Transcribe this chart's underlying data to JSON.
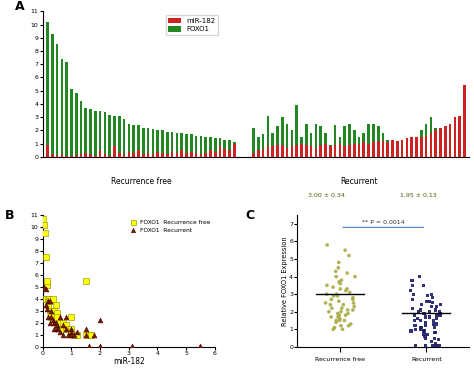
{
  "panel_A_label": "A",
  "panel_B_label": "B",
  "panel_C_label": "C",
  "recurrence_free_count": 40,
  "recurrent_count": 45,
  "foxo1_recurrence_free": [
    10.2,
    9.3,
    8.5,
    7.4,
    7.2,
    5.1,
    4.8,
    4.2,
    3.7,
    3.6,
    3.5,
    3.5,
    3.4,
    3.2,
    3.1,
    3.1,
    2.9,
    2.5,
    2.4,
    2.4,
    2.2,
    2.2,
    2.1,
    2.0,
    2.0,
    1.9,
    1.9,
    1.8,
    1.8,
    1.7,
    1.7,
    1.6,
    1.6,
    1.5,
    1.5,
    1.4,
    1.4,
    1.3,
    1.3,
    1.1
  ],
  "mir182_recurrence_free": [
    0.9,
    0.2,
    0.15,
    0.2,
    0.1,
    0.1,
    0.15,
    0.2,
    0.3,
    0.2,
    0.1,
    0.5,
    0.2,
    0.1,
    0.8,
    0.3,
    0.2,
    0.4,
    0.3,
    0.5,
    0.2,
    0.3,
    0.2,
    0.4,
    0.3,
    0.2,
    0.4,
    0.3,
    0.5,
    0.3,
    0.4,
    0.3,
    0.2,
    0.3,
    0.5,
    0.4,
    0.8,
    0.6,
    0.5,
    1.0
  ],
  "foxo1_recurrent": [
    2.2,
    1.5,
    1.7,
    3.1,
    1.8,
    2.3,
    3.0,
    2.5,
    2.0,
    3.9,
    1.5,
    2.5,
    1.8,
    2.5,
    2.3,
    1.8,
    0.9,
    2.4,
    1.5,
    2.3,
    2.5,
    2.0,
    1.5,
    1.8,
    2.5,
    2.5,
    2.3,
    1.8,
    1.3,
    1.2,
    1.0,
    1.1,
    1.2,
    1.3,
    1.5,
    2.0,
    2.5,
    3.0,
    2.2,
    1.5,
    1.8,
    2.3,
    3.0,
    3.0,
    5.3
  ],
  "mir182_recurrent": [
    0.3,
    0.5,
    0.6,
    0.8,
    0.8,
    0.9,
    0.9,
    0.7,
    0.8,
    0.9,
    1.0,
    0.9,
    0.8,
    0.7,
    0.9,
    1.0,
    0.8,
    0.9,
    1.0,
    0.8,
    0.9,
    1.0,
    1.0,
    1.1,
    1.0,
    1.1,
    1.2,
    1.2,
    1.1,
    1.3,
    1.2,
    1.3,
    1.4,
    1.5,
    1.5,
    1.5,
    1.6,
    1.8,
    2.0,
    2.2,
    2.3,
    2.5,
    3.0,
    3.1,
    5.4
  ],
  "scatter_recfree_x": [
    0.02,
    0.05,
    0.08,
    0.1,
    0.12,
    0.15,
    0.15,
    0.18,
    0.2,
    0.22,
    0.25,
    0.25,
    0.28,
    0.3,
    0.3,
    0.35,
    0.35,
    0.4,
    0.4,
    0.45,
    0.45,
    0.5,
    0.5,
    0.55,
    0.6,
    0.6,
    0.7,
    0.7,
    0.8,
    0.8,
    0.9,
    1.0,
    1.0,
    1.0,
    1.1,
    1.2,
    1.5,
    1.5,
    1.6,
    1.7
  ],
  "scatter_recfree_y": [
    10.7,
    10.2,
    9.5,
    4.0,
    7.5,
    5.2,
    5.5,
    4.0,
    3.5,
    4.0,
    3.8,
    3.0,
    2.5,
    3.0,
    2.8,
    4.0,
    2.5,
    3.0,
    2.5,
    2.2,
    3.5,
    2.8,
    2.5,
    1.8,
    2.0,
    2.0,
    1.5,
    2.0,
    1.5,
    1.8,
    1.5,
    1.5,
    1.2,
    2.5,
    1.0,
    1.0,
    5.5,
    1.0,
    1.0,
    1.0
  ],
  "scatter_recurrent_x": [
    0.05,
    0.1,
    0.1,
    0.15,
    0.2,
    0.2,
    0.25,
    0.25,
    0.3,
    0.3,
    0.35,
    0.4,
    0.4,
    0.45,
    0.5,
    0.5,
    0.55,
    0.6,
    0.6,
    0.7,
    0.7,
    0.8,
    0.8,
    0.9,
    1.0,
    1.0,
    1.0,
    1.1,
    1.2,
    1.5,
    1.5,
    1.6,
    1.8,
    2.0,
    2.0,
    3.1,
    5.5
  ],
  "scatter_recurrent_y": [
    5.0,
    4.8,
    3.5,
    3.2,
    3.8,
    2.5,
    3.8,
    2.0,
    3.0,
    2.5,
    2.2,
    2.0,
    1.5,
    2.0,
    1.8,
    1.5,
    1.5,
    2.5,
    1.2,
    1.8,
    1.0,
    1.5,
    2.5,
    1.0,
    1.5,
    1.2,
    1.0,
    1.0,
    1.2,
    1.0,
    1.5,
    0.1,
    1.0,
    0.1,
    2.2,
    0.1,
    0.1
  ],
  "strip_recfree_y": [
    5.8,
    5.2,
    4.5,
    4.2,
    4.0,
    3.8,
    3.6,
    3.5,
    3.4,
    3.3,
    3.2,
    3.1,
    3.0,
    3.0,
    2.9,
    2.8,
    2.7,
    2.6,
    2.5,
    2.5,
    2.4,
    2.3,
    2.2,
    2.2,
    2.1,
    2.0,
    2.0,
    1.9,
    1.8,
    1.8,
    1.7,
    1.6,
    1.5,
    1.5,
    1.4,
    1.3,
    1.2,
    1.1,
    1.0,
    1.0,
    4.8,
    4.3,
    5.5,
    4.0,
    3.7,
    3.3,
    2.9,
    2.7,
    2.4,
    2.1,
    1.9,
    1.7,
    1.5,
    1.2
  ],
  "strip_recurrent_y": [
    3.5,
    3.2,
    3.0,
    2.8,
    2.6,
    2.5,
    2.4,
    2.3,
    2.2,
    2.1,
    2.0,
    2.0,
    1.9,
    1.8,
    1.8,
    1.7,
    1.6,
    1.5,
    1.5,
    1.4,
    1.3,
    1.2,
    1.2,
    1.1,
    1.1,
    1.0,
    1.0,
    0.9,
    0.9,
    0.8,
    0.8,
    0.7,
    0.6,
    0.5,
    0.4,
    0.3,
    0.2,
    0.1,
    3.8,
    0.1,
    4.0,
    0.05,
    0.05,
    0.05,
    0.05,
    3.0,
    2.7,
    2.4,
    2.1,
    1.9,
    1.7,
    1.5,
    1.3,
    1.1,
    0.9,
    0.7,
    0.5,
    3.5,
    2.9,
    2.6,
    2.3,
    2.0,
    1.8,
    1.6
  ],
  "mean_recfree": 3.0,
  "sem_recfree": 0.34,
  "mean_recurrent": 1.95,
  "sem_recurrent": 0.13,
  "pvalue_text": "** P = 0.0014",
  "recurrence_free_label": "Recurrence free",
  "recurrent_label": "Recurrent",
  "mir182_color": "#cc2222",
  "foxo1_color": "#228822",
  "scatter_recfree_color": "#ffff00",
  "scatter_recurrent_color": "#7b1a00",
  "strip_recfree_color": "#aaaa44",
  "strip_recurrent_color": "#1a1a66",
  "bg_color": "#ffffff"
}
